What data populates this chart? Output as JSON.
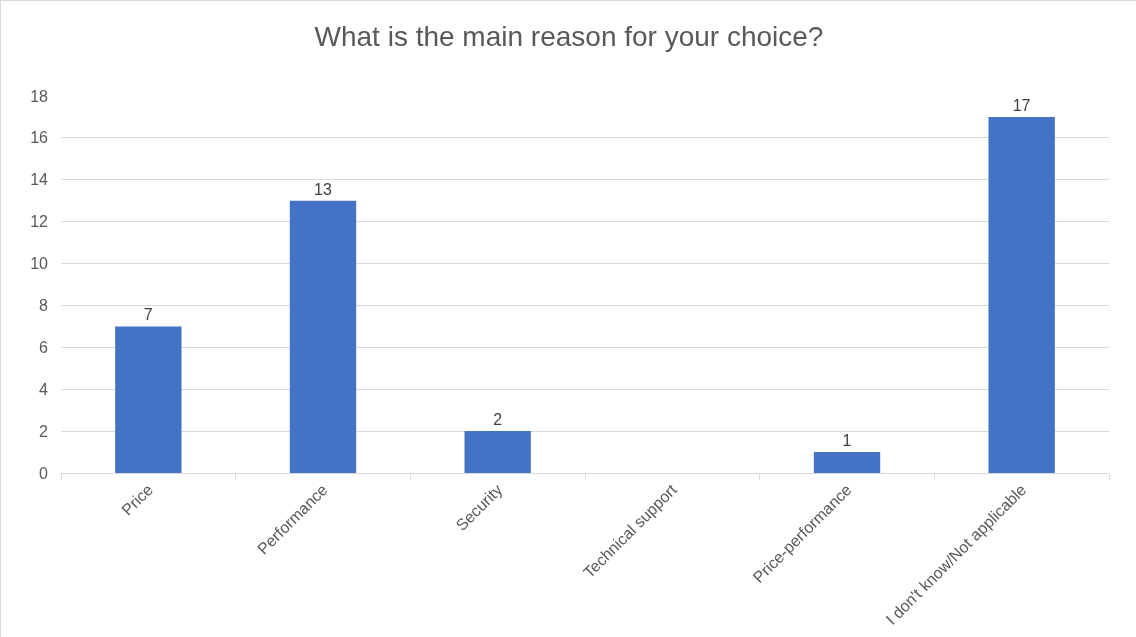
{
  "chart_data": {
    "type": "bar",
    "title": "What is the main reason for your choice?",
    "categories": [
      "Price",
      "Performance",
      "Security",
      "Technical support",
      "Price-performance",
      "I don't know/Not applicable"
    ],
    "values": [
      7,
      13,
      2,
      0,
      1,
      17
    ],
    "value_labels": [
      "7",
      "13",
      "2",
      null,
      "1",
      "17"
    ],
    "color": "#4472c4",
    "ylim": [
      0,
      18
    ],
    "yticks": [
      0,
      2,
      4,
      6,
      8,
      10,
      12,
      14,
      16,
      18
    ],
    "grid": "y"
  }
}
